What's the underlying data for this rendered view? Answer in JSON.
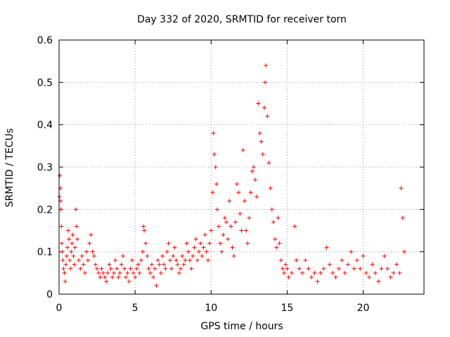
{
  "chart_data": {
    "type": "scatter",
    "title": "Day 332 of 2020, SRMTID for receiver torn",
    "xlabel": "GPS time / hours",
    "ylabel": "SRMTID / TECUs",
    "xlim": [
      0,
      24
    ],
    "ylim": [
      0,
      0.6
    ],
    "xticks": [
      0,
      5,
      10,
      15,
      20
    ],
    "xtick_labels": [
      "0",
      "5",
      "10",
      "15",
      "20"
    ],
    "yticks": [
      0,
      0.1,
      0.2,
      0.3,
      0.4,
      0.5,
      0.6
    ],
    "ytick_labels": [
      "0",
      "0.1",
      "0.2",
      "0.3",
      "0.4",
      "0.5",
      "0.6"
    ],
    "grid": true,
    "marker": "+",
    "color": "#ff0000",
    "series": [
      {
        "name": "SRMTID",
        "points": [
          [
            0.02,
            0.23
          ],
          [
            0.05,
            0.28
          ],
          [
            0.08,
            0.25
          ],
          [
            0.1,
            0.22
          ],
          [
            0.12,
            0.2
          ],
          [
            0.15,
            0.16
          ],
          [
            0.18,
            0.12
          ],
          [
            0.2,
            0.1
          ],
          [
            0.25,
            0.08
          ],
          [
            0.3,
            0.06
          ],
          [
            0.35,
            0.05
          ],
          [
            0.4,
            0.03
          ],
          [
            0.45,
            0.07
          ],
          [
            0.5,
            0.09
          ],
          [
            0.55,
            0.11
          ],
          [
            0.6,
            0.15
          ],
          [
            0.65,
            0.13
          ],
          [
            0.7,
            0.08
          ],
          [
            0.75,
            0.06
          ],
          [
            0.8,
            0.1
          ],
          [
            0.85,
            0.12
          ],
          [
            0.9,
            0.14
          ],
          [
            0.95,
            0.09
          ],
          [
            1.0,
            0.07
          ],
          [
            1.05,
            0.11
          ],
          [
            1.1,
            0.2
          ],
          [
            1.15,
            0.16
          ],
          [
            1.2,
            0.13
          ],
          [
            1.3,
            0.08
          ],
          [
            1.4,
            0.06
          ],
          [
            1.5,
            0.09
          ],
          [
            1.6,
            0.07
          ],
          [
            1.7,
            0.05
          ],
          [
            1.8,
            0.1
          ],
          [
            1.9,
            0.08
          ],
          [
            2.0,
            0.12
          ],
          [
            2.1,
            0.14
          ],
          [
            2.2,
            0.1
          ],
          [
            2.3,
            0.09
          ],
          [
            2.4,
            0.07
          ],
          [
            2.5,
            0.06
          ],
          [
            2.6,
            0.05
          ],
          [
            2.7,
            0.04
          ],
          [
            2.8,
            0.06
          ],
          [
            2.9,
            0.05
          ],
          [
            3.0,
            0.04
          ],
          [
            3.1,
            0.03
          ],
          [
            3.2,
            0.05
          ],
          [
            3.3,
            0.07
          ],
          [
            3.4,
            0.06
          ],
          [
            3.5,
            0.04
          ],
          [
            3.6,
            0.05
          ],
          [
            3.7,
            0.08
          ],
          [
            3.8,
            0.06
          ],
          [
            3.9,
            0.04
          ],
          [
            4.0,
            0.05
          ],
          [
            4.1,
            0.07
          ],
          [
            4.2,
            0.09
          ],
          [
            4.3,
            0.06
          ],
          [
            4.4,
            0.04
          ],
          [
            4.5,
            0.05
          ],
          [
            4.6,
            0.03
          ],
          [
            4.7,
            0.06
          ],
          [
            4.8,
            0.08
          ],
          [
            4.9,
            0.05
          ],
          [
            5.0,
            0.04
          ],
          [
            5.1,
            0.06
          ],
          [
            5.2,
            0.07
          ],
          [
            5.3,
            0.05
          ],
          [
            5.4,
            0.08
          ],
          [
            5.5,
            0.1
          ],
          [
            5.55,
            0.16
          ],
          [
            5.6,
            0.15
          ],
          [
            5.7,
            0.12
          ],
          [
            5.8,
            0.09
          ],
          [
            5.9,
            0.06
          ],
          [
            6.0,
            0.05
          ],
          [
            6.1,
            0.07
          ],
          [
            6.2,
            0.04
          ],
          [
            6.3,
            0.06
          ],
          [
            6.4,
            0.02
          ],
          [
            6.5,
            0.08
          ],
          [
            6.6,
            0.07
          ],
          [
            6.7,
            0.05
          ],
          [
            6.8,
            0.09
          ],
          [
            6.9,
            0.07
          ],
          [
            7.0,
            0.06
          ],
          [
            7.1,
            0.1
          ],
          [
            7.2,
            0.12
          ],
          [
            7.3,
            0.08
          ],
          [
            7.4,
            0.06
          ],
          [
            7.5,
            0.09
          ],
          [
            7.6,
            0.11
          ],
          [
            7.7,
            0.08
          ],
          [
            7.8,
            0.07
          ],
          [
            7.9,
            0.05
          ],
          [
            8.0,
            0.06
          ],
          [
            8.1,
            0.09
          ],
          [
            8.2,
            0.07
          ],
          [
            8.3,
            0.08
          ],
          [
            8.4,
            0.12
          ],
          [
            8.5,
            0.1
          ],
          [
            8.6,
            0.08
          ],
          [
            8.7,
            0.06
          ],
          [
            8.8,
            0.09
          ],
          [
            8.9,
            0.11
          ],
          [
            9.0,
            0.13
          ],
          [
            9.1,
            0.08
          ],
          [
            9.2,
            0.1
          ],
          [
            9.3,
            0.12
          ],
          [
            9.4,
            0.09
          ],
          [
            9.5,
            0.11
          ],
          [
            9.6,
            0.14
          ],
          [
            9.7,
            0.1
          ],
          [
            9.8,
            0.08
          ],
          [
            9.9,
            0.12
          ],
          [
            10.0,
            0.15
          ],
          [
            10.1,
            0.24
          ],
          [
            10.15,
            0.38
          ],
          [
            10.2,
            0.33
          ],
          [
            10.3,
            0.3
          ],
          [
            10.35,
            0.26
          ],
          [
            10.4,
            0.2
          ],
          [
            10.5,
            0.16
          ],
          [
            10.6,
            0.12
          ],
          [
            10.7,
            0.1
          ],
          [
            10.8,
            0.14
          ],
          [
            10.9,
            0.18
          ],
          [
            11.0,
            0.17
          ],
          [
            11.1,
            0.13
          ],
          [
            11.2,
            0.22
          ],
          [
            11.3,
            0.16
          ],
          [
            11.4,
            0.11
          ],
          [
            11.5,
            0.09
          ],
          [
            11.6,
            0.17
          ],
          [
            11.7,
            0.26
          ],
          [
            11.8,
            0.24
          ],
          [
            11.9,
            0.19
          ],
          [
            12.0,
            0.15
          ],
          [
            12.1,
            0.34
          ],
          [
            12.2,
            0.22
          ],
          [
            12.3,
            0.15
          ],
          [
            12.4,
            0.12
          ],
          [
            12.5,
            0.18
          ],
          [
            12.6,
            0.24
          ],
          [
            12.7,
            0.29
          ],
          [
            12.8,
            0.3
          ],
          [
            12.9,
            0.27
          ],
          [
            13.0,
            0.23
          ],
          [
            13.1,
            0.45
          ],
          [
            13.2,
            0.38
          ],
          [
            13.3,
            0.36
          ],
          [
            13.4,
            0.33
          ],
          [
            13.5,
            0.44
          ],
          [
            13.55,
            0.5
          ],
          [
            13.6,
            0.54
          ],
          [
            13.7,
            0.42
          ],
          [
            13.8,
            0.31
          ],
          [
            13.9,
            0.25
          ],
          [
            14.0,
            0.2
          ],
          [
            14.1,
            0.17
          ],
          [
            14.2,
            0.13
          ],
          [
            14.3,
            0.11
          ],
          [
            14.4,
            0.18
          ],
          [
            14.5,
            0.12
          ],
          [
            14.6,
            0.08
          ],
          [
            14.7,
            0.06
          ],
          [
            14.8,
            0.05
          ],
          [
            14.9,
            0.07
          ],
          [
            15.0,
            0.06
          ],
          [
            15.1,
            0.04
          ],
          [
            15.3,
            0.05
          ],
          [
            15.5,
            0.16
          ],
          [
            15.6,
            0.08
          ],
          [
            15.8,
            0.06
          ],
          [
            16.0,
            0.05
          ],
          [
            16.2,
            0.08
          ],
          [
            16.4,
            0.06
          ],
          [
            16.6,
            0.04
          ],
          [
            16.8,
            0.05
          ],
          [
            17.0,
            0.03
          ],
          [
            17.2,
            0.05
          ],
          [
            17.4,
            0.06
          ],
          [
            17.6,
            0.11
          ],
          [
            17.8,
            0.07
          ],
          [
            18.0,
            0.05
          ],
          [
            18.2,
            0.04
          ],
          [
            18.4,
            0.06
          ],
          [
            18.6,
            0.08
          ],
          [
            18.8,
            0.05
          ],
          [
            19.0,
            0.07
          ],
          [
            19.2,
            0.1
          ],
          [
            19.4,
            0.06
          ],
          [
            19.6,
            0.08
          ],
          [
            19.8,
            0.06
          ],
          [
            20.0,
            0.09
          ],
          [
            20.2,
            0.05
          ],
          [
            20.4,
            0.04
          ],
          [
            20.6,
            0.07
          ],
          [
            20.8,
            0.05
          ],
          [
            21.0,
            0.03
          ],
          [
            21.2,
            0.06
          ],
          [
            21.4,
            0.09
          ],
          [
            21.6,
            0.06
          ],
          [
            21.8,
            0.04
          ],
          [
            22.0,
            0.05
          ],
          [
            22.2,
            0.07
          ],
          [
            22.4,
            0.05
          ],
          [
            22.5,
            0.25
          ],
          [
            22.6,
            0.18
          ],
          [
            22.7,
            0.1
          ]
        ]
      }
    ]
  }
}
